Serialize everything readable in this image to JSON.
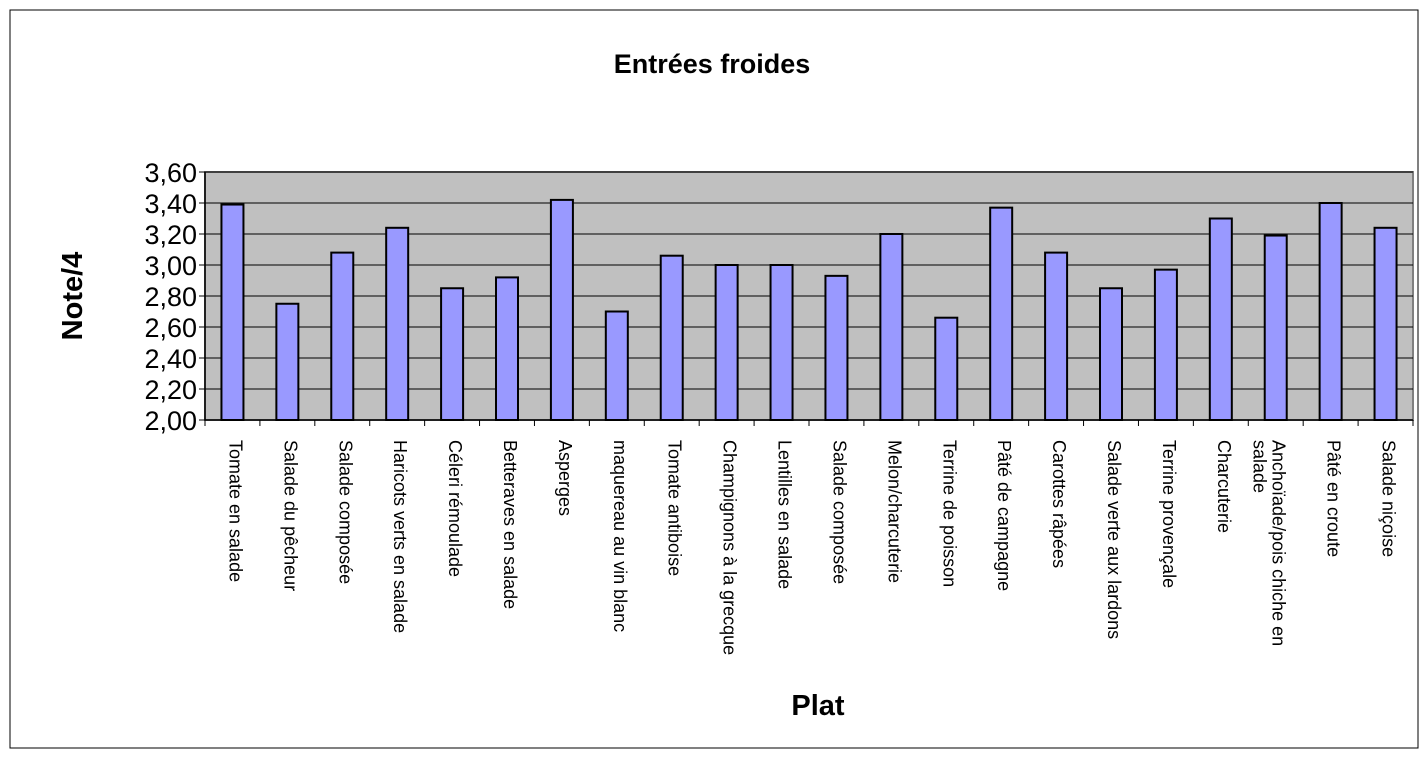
{
  "chart_data": {
    "type": "bar",
    "title": "Entrées froides",
    "x_label": "Plat",
    "y_label": "Note/4",
    "categories": [
      "Tomate en salade",
      "Salade du pêcheur",
      "Salade composée",
      "Haricots verts en salade",
      "Céleri rémoulade",
      "Betteraves en salade",
      "Asperges",
      "maquereau au vin blanc",
      "Tomate antiboise",
      "Champignons à la grecque",
      "Lentilles en salade",
      "Salade composée",
      "Melon/charcuterie",
      "Terrine de poisson",
      "Pâté de campagne",
      "Carottes râpées",
      "Salade verte aux lardons",
      "Terrine provençale",
      "Charcuterie",
      "Anchoïade/pois chiche en salade",
      "Pâté en croute",
      "Salade niçoise"
    ],
    "values": [
      3.39,
      2.75,
      3.08,
      3.24,
      2.85,
      2.92,
      3.42,
      2.7,
      3.06,
      3.0,
      3.0,
      2.93,
      3.2,
      2.66,
      3.37,
      3.08,
      2.85,
      2.97,
      3.3,
      3.19,
      3.4,
      3.24
    ],
    "color": "#9999ff",
    "background": "#c0c0c0",
    "grid": true,
    "ylim": [
      2.0,
      3.6
    ],
    "yticks": [
      {
        "value": 2.0,
        "label": "2,00"
      },
      {
        "value": 2.2,
        "label": "2,20"
      },
      {
        "value": 2.4,
        "label": "2,40"
      },
      {
        "value": 2.6,
        "label": "2,60"
      },
      {
        "value": 2.8,
        "label": "2,80"
      },
      {
        "value": 3.0,
        "label": "3,00"
      },
      {
        "value": 3.2,
        "label": "3,20"
      },
      {
        "value": 3.4,
        "label": "3,40"
      },
      {
        "value": 3.6,
        "label": "3,60"
      }
    ]
  }
}
